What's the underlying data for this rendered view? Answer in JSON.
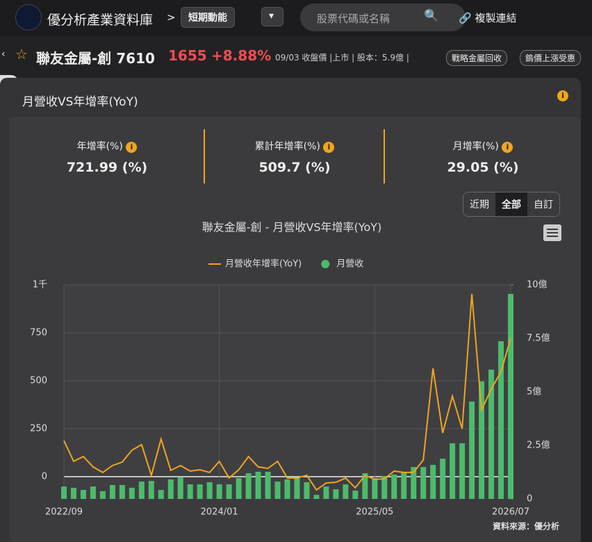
{
  "header": {
    "title": "優分析產業資料庫",
    "separator": ">",
    "section": "短期動能",
    "search_placeholder": "股票代碼或名稱",
    "copy_link": "複製連結"
  },
  "stock": {
    "name": "聯友金屬-創 7610",
    "price": "1655",
    "change": "+8.88%",
    "meta": "09/03 收盤價 |上市 | 股本：5.9億 |",
    "tags": [
      "戰略金屬回收",
      "鎢價上漲受惠"
    ]
  },
  "panel": {
    "title": "月營收VS年增率(YoY)"
  },
  "stats": [
    {
      "label": "年增率(%)",
      "value": "721.99 (%)"
    },
    {
      "label": "累計年增率(%)",
      "value": "509.7 (%)"
    },
    {
      "label": "月增率(%)",
      "value": "29.05 (%)"
    }
  ],
  "range_buttons": [
    "近期",
    "全部",
    "自訂"
  ],
  "chart_data": {
    "type": "combo",
    "title": "聯友金屬-創 - 月營收VS年增率(YoY)",
    "categories": [
      "2022/09",
      null,
      null,
      null,
      null,
      null,
      null,
      null,
      null,
      null,
      null,
      null,
      null,
      null,
      null,
      null,
      "2024/01",
      null,
      null,
      null,
      null,
      null,
      null,
      null,
      null,
      null,
      null,
      null,
      null,
      null,
      null,
      null,
      "2025/05",
      null,
      null,
      null,
      null,
      null,
      null,
      null,
      null,
      null,
      null,
      null,
      null,
      null,
      "2026/07"
    ],
    "series": [
      {
        "name": "月營收年增率(YoY)",
        "type": "line",
        "color": "#f0a51e",
        "values": [
          188,
          80,
          105,
          51,
          22,
          58,
          76,
          138,
          167,
          7,
          196,
          33,
          58,
          29,
          36,
          22,
          80,
          -7,
          36,
          105,
          51,
          43,
          80,
          -7,
          -7,
          7,
          -69,
          -33,
          -29,
          -7,
          -58,
          7,
          -14,
          -11,
          29,
          22,
          22,
          87,
          565,
          228,
          420,
          250,
          953,
          348,
          457,
          547,
          722
        ]
      },
      {
        "name": "月營收",
        "type": "bar",
        "axis": "y2",
        "color": "#4cbb6c",
        "values": [
          0.58,
          0.52,
          0.42,
          0.58,
          0.36,
          0.65,
          0.65,
          0.52,
          0.81,
          0.84,
          0.42,
          0.91,
          1.0,
          0.68,
          0.68,
          0.78,
          0.68,
          0.68,
          0.97,
          1.2,
          1.27,
          1.27,
          0.81,
          0.91,
          0.97,
          0.78,
          0.19,
          0.58,
          0.45,
          0.68,
          0.39,
          1.2,
          0.97,
          1.07,
          1.14,
          1.23,
          1.49,
          1.49,
          1.59,
          1.88,
          2.6,
          2.6,
          4.55,
          5.49,
          6.04,
          7.37,
          9.58
        ]
      }
    ],
    "ylim": [
      -116,
      1000
    ],
    "yticks": [
      0,
      250,
      500,
      750,
      {
        "value": 1000,
        "label": "1千"
      }
    ],
    "y2lim": [
      0,
      10
    ],
    "y2ticks": [
      0,
      {
        "value": 2.5,
        "label": "2.5億"
      },
      {
        "value": 5,
        "label": "5億"
      },
      {
        "value": 7.5,
        "label": "7.5億"
      },
      {
        "value": 10,
        "label": "10億"
      }
    ],
    "grid": true,
    "legend": "top",
    "source": "資料來源：優分析"
  }
}
